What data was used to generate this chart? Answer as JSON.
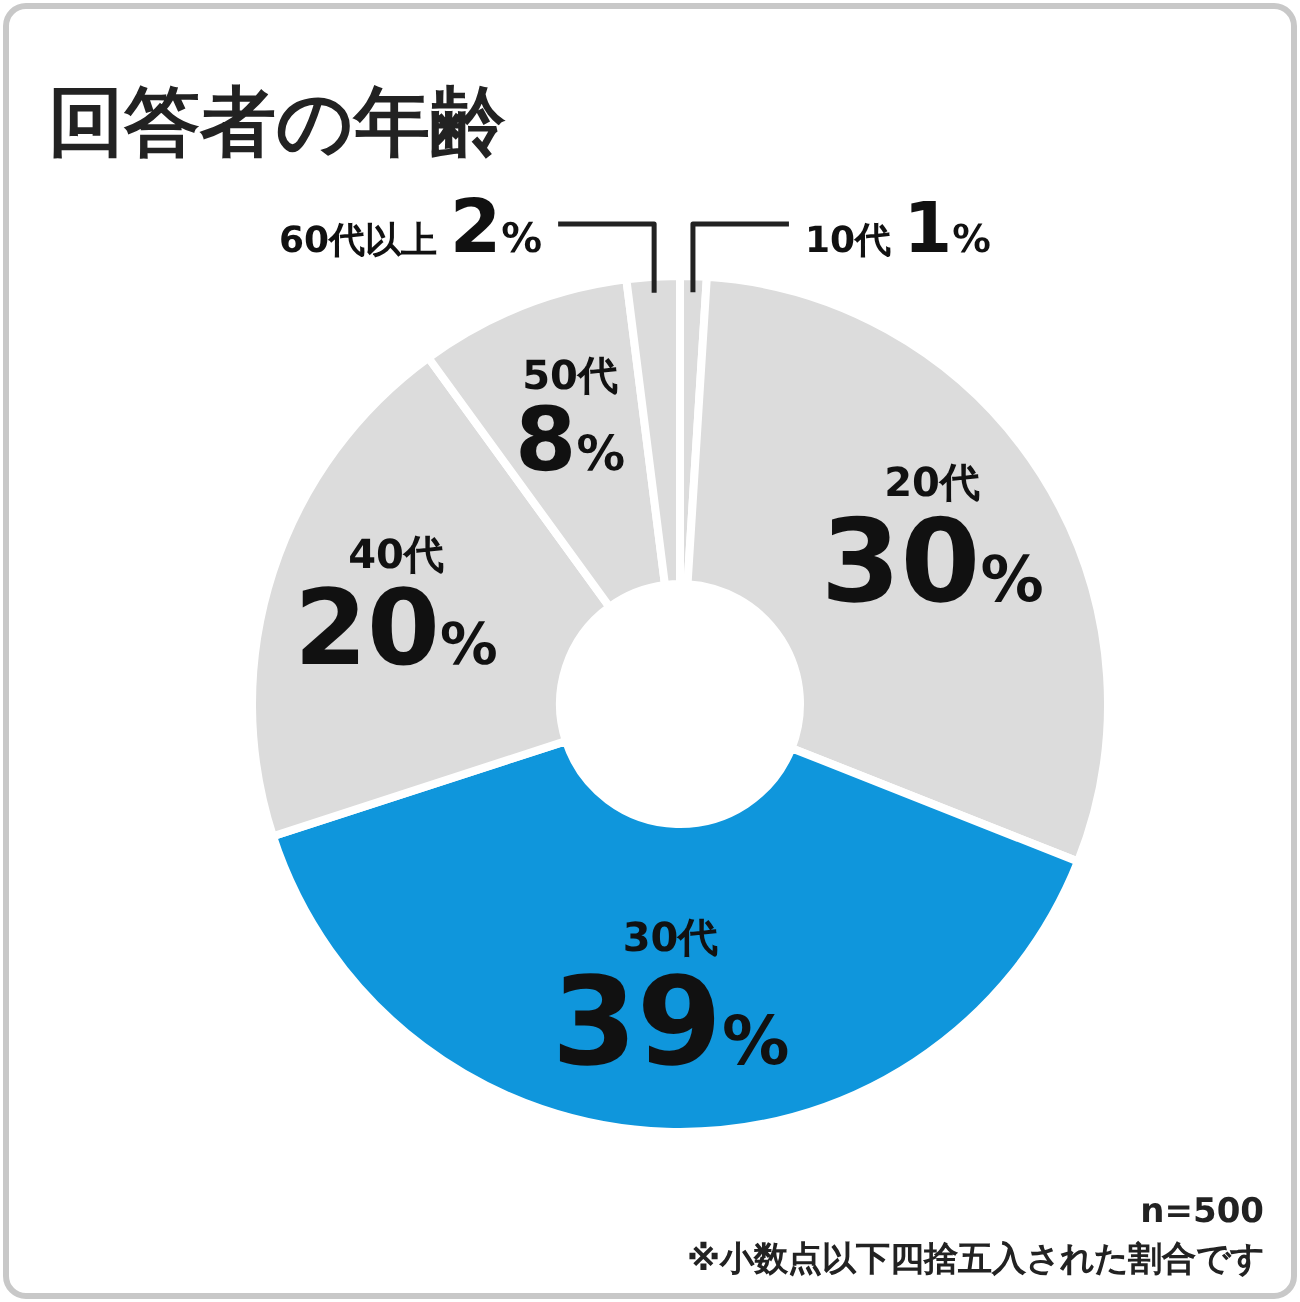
{
  "chart_data": {
    "type": "donut",
    "title": "回答者の年齢",
    "categories": [
      "10代",
      "20代",
      "30代",
      "40代",
      "50代",
      "60代以上"
    ],
    "values": [
      1,
      30,
      39,
      20,
      8,
      2
    ],
    "colors": [
      "#dcdcdc",
      "#dcdcdc",
      "#0f96dc",
      "#dcdcdc",
      "#dcdcdc",
      "#dcdcdc"
    ],
    "value_labels": [
      "1%",
      "30%",
      "39%",
      "20%",
      "8%",
      "2%"
    ],
    "annotations": [
      "n=500",
      "※小数点以下四捨五入された割合です"
    ]
  }
}
